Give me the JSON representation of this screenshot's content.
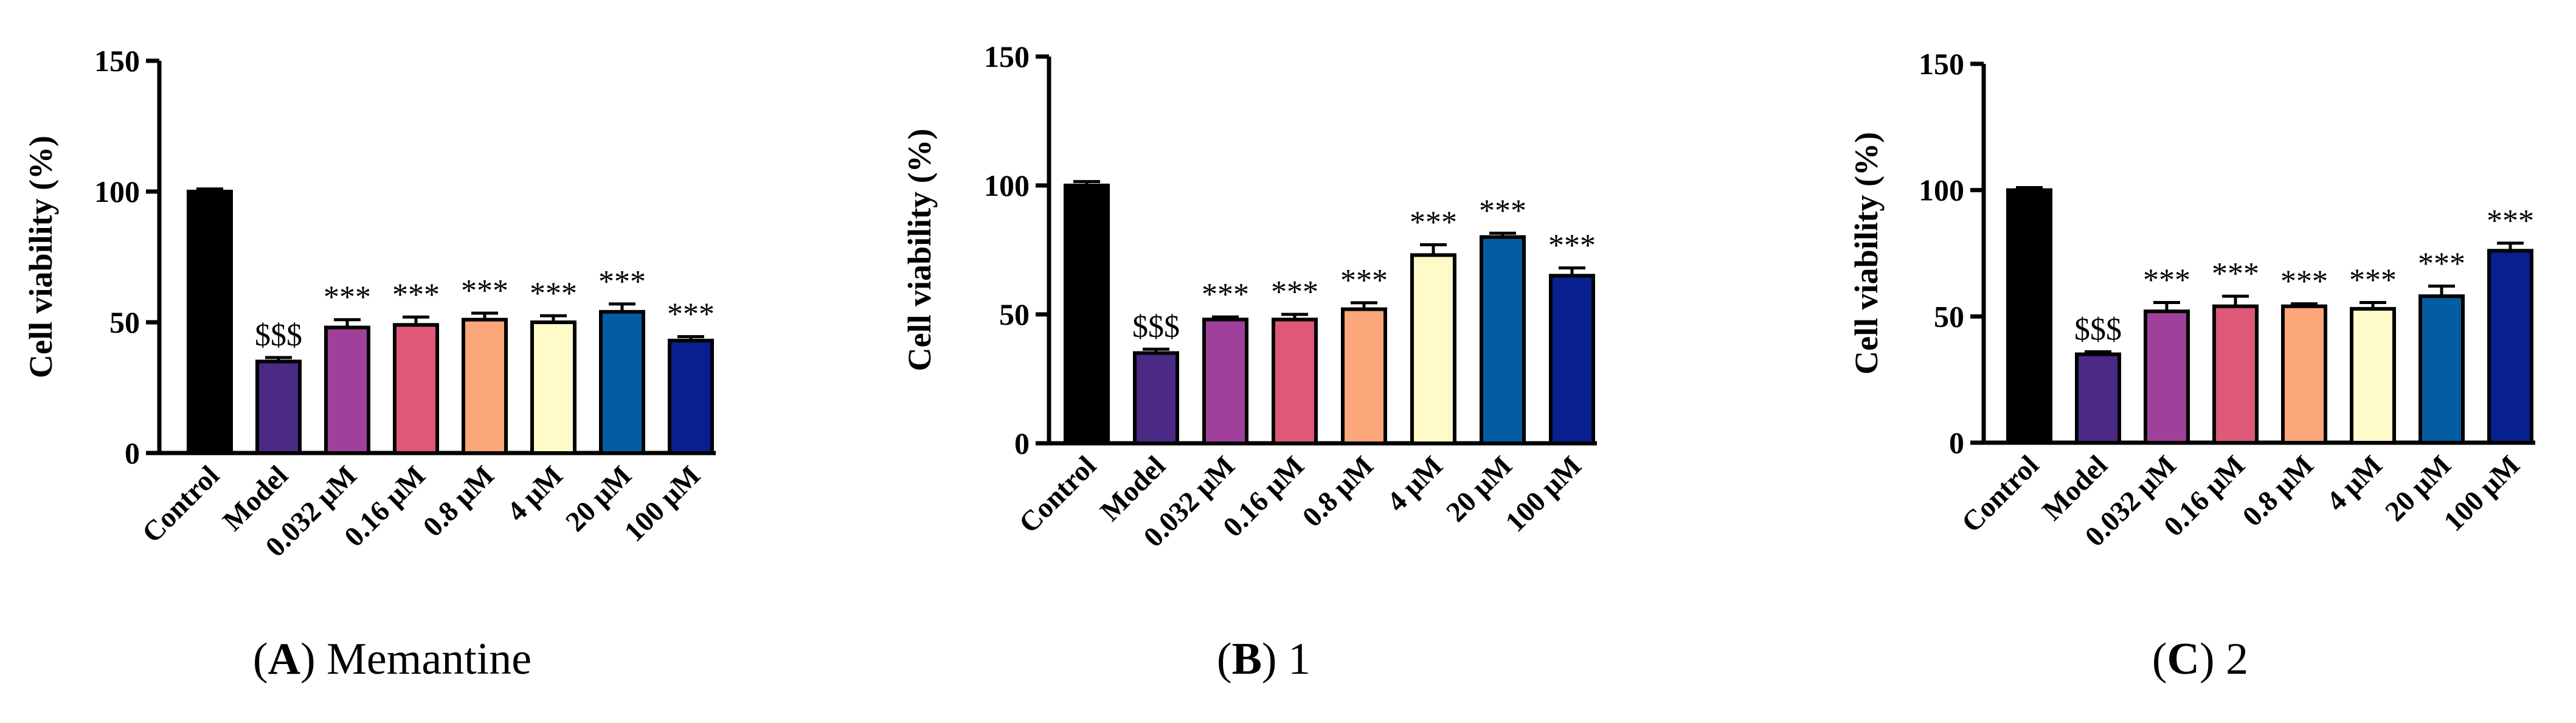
{
  "chart_data": [
    {
      "type": "bar",
      "panel_letter": "A",
      "panel_name": "Memantine",
      "ylabel": "Cell viability (%)",
      "ylim": [
        0,
        150
      ],
      "yticks": [
        "0",
        "50",
        "100",
        "150"
      ],
      "categories": [
        "Control",
        "Model",
        "0.032 μM",
        "0.16 μM",
        "0.8 μM",
        "4 μM",
        "20 μM",
        "100 μM"
      ],
      "values": [
        100,
        35,
        48,
        49,
        51,
        50,
        54,
        43
      ],
      "errors": [
        1,
        1.5,
        3,
        3,
        2.5,
        2.5,
        3,
        1.5
      ],
      "annotations": [
        "",
        "$$$",
        "***",
        "***",
        "***",
        "***",
        "***",
        "***"
      ],
      "bar_colors": [
        "#000000",
        "#4b2a86",
        "#a0409a",
        "#e05877",
        "#fca77a",
        "#fffbc8",
        "#035da0",
        "#071f8f"
      ]
    },
    {
      "type": "bar",
      "panel_letter": "B",
      "panel_name": "1",
      "ylabel": "Cell viability (%)",
      "ylim": [
        0,
        150
      ],
      "yticks": [
        "0",
        "50",
        "100",
        "150"
      ],
      "categories": [
        "Control",
        "Model",
        "0.032 μM",
        "0.16 μM",
        "0.8 μM",
        "4 μM",
        "20 μM",
        "100 μM"
      ],
      "values": [
        100,
        35,
        48,
        48,
        52,
        73,
        80,
        65
      ],
      "errors": [
        1.5,
        1.5,
        1,
        2,
        2.5,
        4,
        1.5,
        3
      ],
      "annotations": [
        "",
        "$$$",
        "***",
        "***",
        "***",
        "***",
        "***",
        "***"
      ],
      "bar_colors": [
        "#000000",
        "#4b2a86",
        "#a0409a",
        "#e05877",
        "#fca77a",
        "#fffbc8",
        "#035da0",
        "#071f8f"
      ]
    },
    {
      "type": "bar",
      "panel_letter": "C",
      "panel_name": "2",
      "ylabel": "Cell viability (%)",
      "ylim": [
        0,
        150
      ],
      "yticks": [
        "0",
        "50",
        "100",
        "150"
      ],
      "categories": [
        "Control",
        "Model",
        "0.032 μM",
        "0.16 μM",
        "0.8 μM",
        "4 μM",
        "20 μM",
        "100 μM"
      ],
      "values": [
        100,
        35,
        52,
        54,
        54,
        53,
        58,
        76
      ],
      "errors": [
        1,
        1,
        3.5,
        4,
        1,
        2.5,
        4,
        3
      ],
      "annotations": [
        "",
        "$$$",
        "***",
        "***",
        "***",
        "***",
        "***",
        "***"
      ],
      "bar_colors": [
        "#000000",
        "#4b2a86",
        "#a0409a",
        "#e05877",
        "#fca77a",
        "#fffbc8",
        "#035da0",
        "#071f8f"
      ]
    }
  ]
}
